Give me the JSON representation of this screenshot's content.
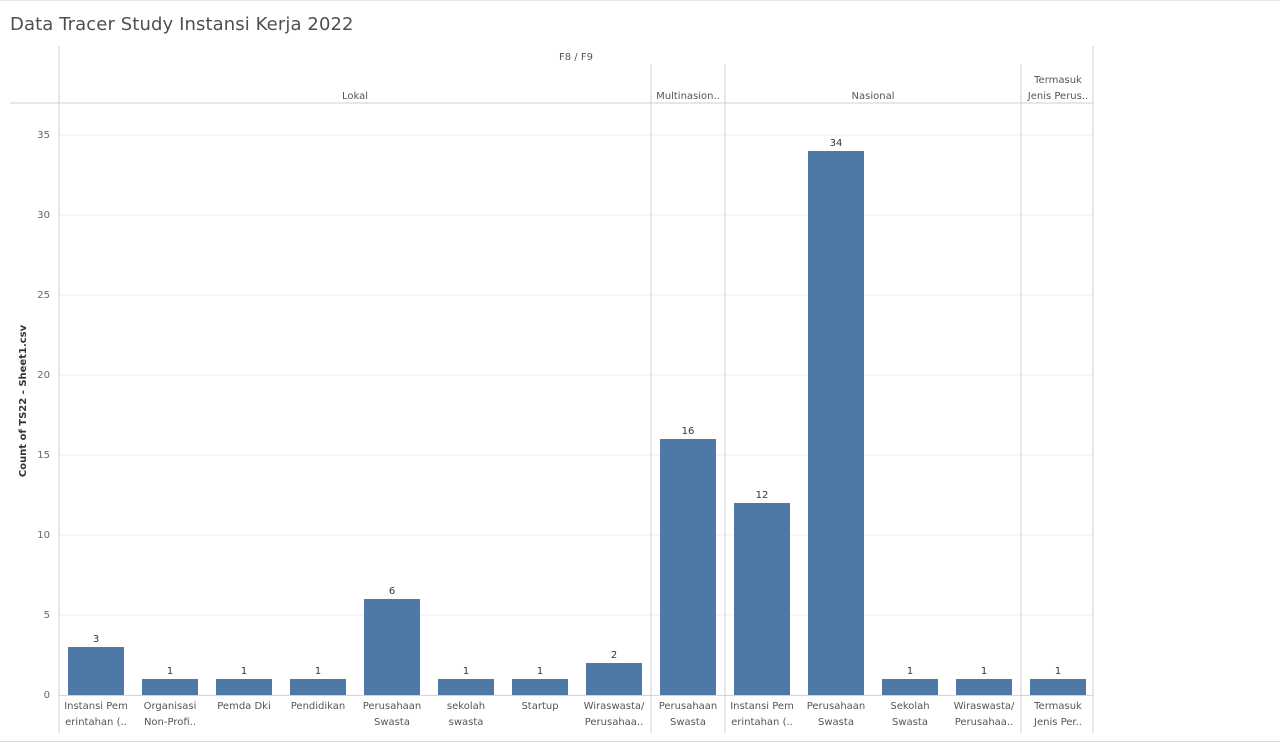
{
  "page": {
    "title": "Data Tracer Study Instansi Kerja 2022"
  },
  "chart_data": {
    "type": "bar",
    "title": "Data Tracer Study Instansi Kerja 2022",
    "column_header": "F8 / F9",
    "ylabel": "Count of TS22 - Sheet1.csv",
    "xlabel": "",
    "ylim": [
      0,
      37
    ],
    "y_ticks": [
      0,
      5,
      10,
      15,
      20,
      25,
      30,
      35
    ],
    "grid": true,
    "bar_color": "#4e79a7",
    "groups": [
      {
        "label_lines": [
          "Lokal"
        ],
        "bars": [
          {
            "label_lines": [
              "Instansi Pem",
              "erintahan (.."
            ],
            "value": 3
          },
          {
            "label_lines": [
              "Organisasi",
              "Non-Profi.."
            ],
            "value": 1
          },
          {
            "label_lines": [
              "Pemda Dki"
            ],
            "value": 1
          },
          {
            "label_lines": [
              "Pendidikan"
            ],
            "value": 1
          },
          {
            "label_lines": [
              "Perusahaan",
              "Swasta"
            ],
            "value": 6
          },
          {
            "label_lines": [
              "sekolah",
              "swasta"
            ],
            "value": 1
          },
          {
            "label_lines": [
              "Startup"
            ],
            "value": 1
          },
          {
            "label_lines": [
              "Wiraswasta/",
              "Perusahaa.."
            ],
            "value": 2
          }
        ]
      },
      {
        "label_lines": [
          "Multinasion.."
        ],
        "bars": [
          {
            "label_lines": [
              "Perusahaan",
              "Swasta"
            ],
            "value": 16
          }
        ]
      },
      {
        "label_lines": [
          "Nasional"
        ],
        "bars": [
          {
            "label_lines": [
              "Instansi Pem",
              "erintahan (.."
            ],
            "value": 12
          },
          {
            "label_lines": [
              "Perusahaan",
              "Swasta"
            ],
            "value": 34
          },
          {
            "label_lines": [
              "Sekolah",
              "Swasta"
            ],
            "value": 1
          },
          {
            "label_lines": [
              "Wiraswasta/",
              "Perusahaa.."
            ],
            "value": 1
          }
        ]
      },
      {
        "label_lines": [
          "Termasuk",
          "Jenis Perus.."
        ],
        "bars": [
          {
            "label_lines": [
              "Termasuk",
              "Jenis Per.."
            ],
            "value": 1
          }
        ]
      }
    ]
  }
}
